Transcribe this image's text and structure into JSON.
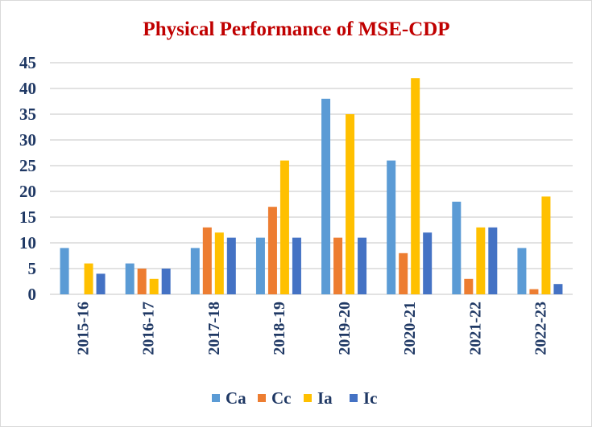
{
  "chart_data": {
    "type": "bar",
    "title": "Physical Performance  of MSE-CDP",
    "xlabel": "",
    "ylabel": "",
    "ylim": [
      0,
      45
    ],
    "yticks": [
      0,
      5,
      10,
      15,
      20,
      25,
      30,
      35,
      40,
      45
    ],
    "grid": true,
    "legend_position": "bottom",
    "categories": [
      "2015-16",
      "2016-17",
      "2017-18",
      "2018-19",
      "2019-20",
      "2020-21",
      "2021-22",
      "2022-23"
    ],
    "series": [
      {
        "name": "Ca",
        "color": "#5B9BD5",
        "values": [
          9,
          6,
          9,
          11,
          38,
          26,
          18,
          9
        ]
      },
      {
        "name": "Cc",
        "color": "#ED7D31",
        "values": [
          0,
          5,
          13,
          17,
          11,
          8,
          3,
          1
        ]
      },
      {
        "name": "Ia",
        "color": "#FFC000",
        "values": [
          6,
          3,
          12,
          26,
          35,
          42,
          13,
          19
        ]
      },
      {
        "name": "Ic",
        "color": "#4472C4",
        "values": [
          4,
          5,
          11,
          11,
          11,
          12,
          13,
          2
        ]
      }
    ],
    "colors": {
      "title": "#C00000",
      "axis_text": "#1F3864",
      "grid": "#D9D9D9"
    }
  }
}
